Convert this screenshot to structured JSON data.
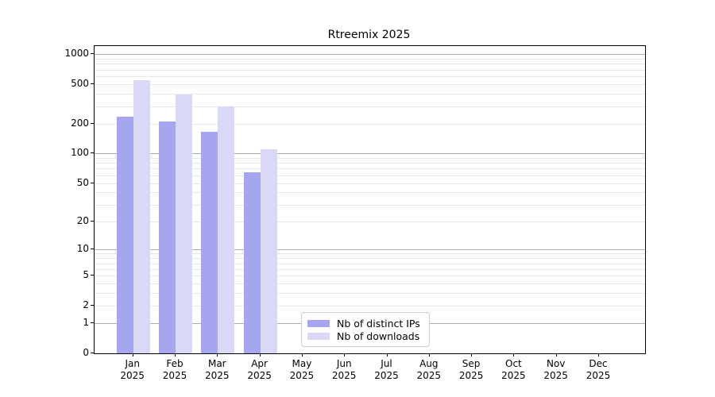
{
  "chart_data": {
    "type": "bar",
    "title": "Rtreemix 2025",
    "categories": [
      "Jan 2025",
      "Feb 2025",
      "Mar 2025",
      "Apr 2025",
      "May 2025",
      "Jun 2025",
      "Jul 2025",
      "Aug 2025",
      "Sep 2025",
      "Oct 2025",
      "Nov 2025",
      "Dec 2025"
    ],
    "series": [
      {
        "name": "Nb of distinct IPs",
        "color": "#a5a5f0",
        "values": [
          235,
          210,
          165,
          65,
          0,
          0,
          0,
          0,
          0,
          0,
          0,
          0
        ]
      },
      {
        "name": "Nb of downloads",
        "color": "#d9d9f7",
        "values": [
          550,
          390,
          300,
          110,
          0,
          0,
          0,
          0,
          0,
          0,
          0,
          0
        ]
      }
    ],
    "y_scale": "log10(1+v)",
    "y_ticks": [
      0,
      1,
      2,
      5,
      10,
      20,
      50,
      100,
      200,
      500,
      1000
    ],
    "ylim": [
      0,
      1200
    ],
    "xlabel": "",
    "ylabel": "",
    "grid": "horizontal, minor light + major dark at powers of 10",
    "legend_position": "lower center inside plot",
    "colors": {
      "minor_grid": "#e8e8e8",
      "major_grid": "#ababab",
      "axis": "#000000",
      "background": "#ffffff",
      "legend_border": "#cccccc"
    }
  }
}
